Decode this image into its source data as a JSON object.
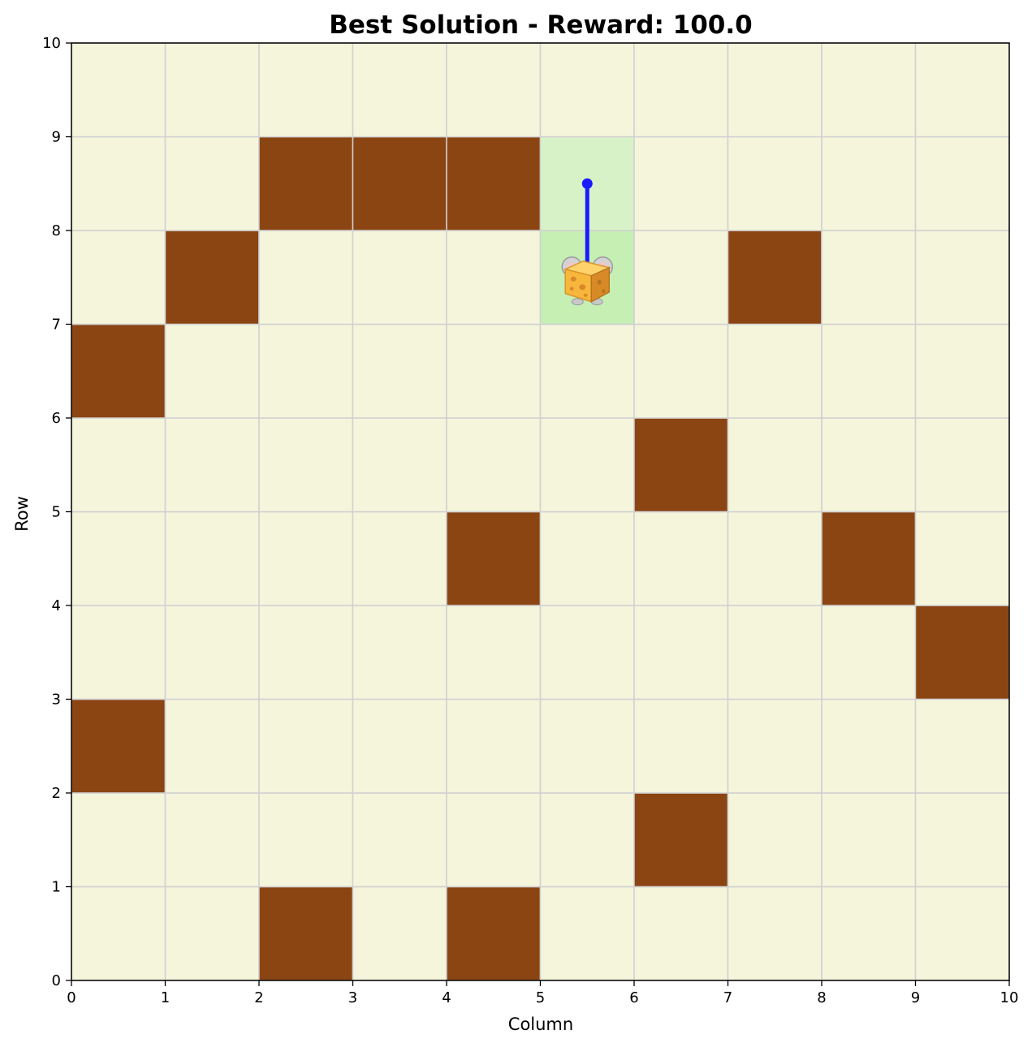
{
  "chart_data": {
    "type": "heatmap",
    "title": "Best Solution - Reward: 100.0",
    "xlabel": "Column",
    "ylabel": "Row",
    "xlim": [
      0,
      10
    ],
    "ylim": [
      0,
      10
    ],
    "x_ticks": [
      "0",
      "1",
      "2",
      "3",
      "4",
      "5",
      "6",
      "7",
      "8",
      "9",
      "10"
    ],
    "y_ticks": [
      "0",
      "1",
      "2",
      "3",
      "4",
      "5",
      "6",
      "7",
      "8",
      "9",
      "10"
    ],
    "grid": true,
    "colors": {
      "empty": "#f5f5dc",
      "wall": "#8b4513",
      "visited": "#d8f2c8",
      "goal": "#c6efb4",
      "grid_line": "#d0d0d0",
      "path": "#1a1aff"
    },
    "walls": [
      {
        "col": 2,
        "row": 8
      },
      {
        "col": 3,
        "row": 8
      },
      {
        "col": 4,
        "row": 8
      },
      {
        "col": 1,
        "row": 7
      },
      {
        "col": 7,
        "row": 7
      },
      {
        "col": 0,
        "row": 6
      },
      {
        "col": 6,
        "row": 5
      },
      {
        "col": 4,
        "row": 4
      },
      {
        "col": 8,
        "row": 4
      },
      {
        "col": 9,
        "row": 3
      },
      {
        "col": 0,
        "row": 2
      },
      {
        "col": 6,
        "row": 1
      },
      {
        "col": 2,
        "row": 0
      },
      {
        "col": 4,
        "row": 0
      }
    ],
    "visited_cells": [
      {
        "col": 5,
        "row": 8
      }
    ],
    "goal_cell": {
      "col": 5,
      "row": 7
    },
    "path": [
      {
        "x": 5.5,
        "y": 8.5
      },
      {
        "x": 5.5,
        "y": 7.5
      }
    ],
    "agent": {
      "x": 5.5,
      "y": 7.5,
      "icon": "mouse-with-cheese-icon"
    }
  }
}
